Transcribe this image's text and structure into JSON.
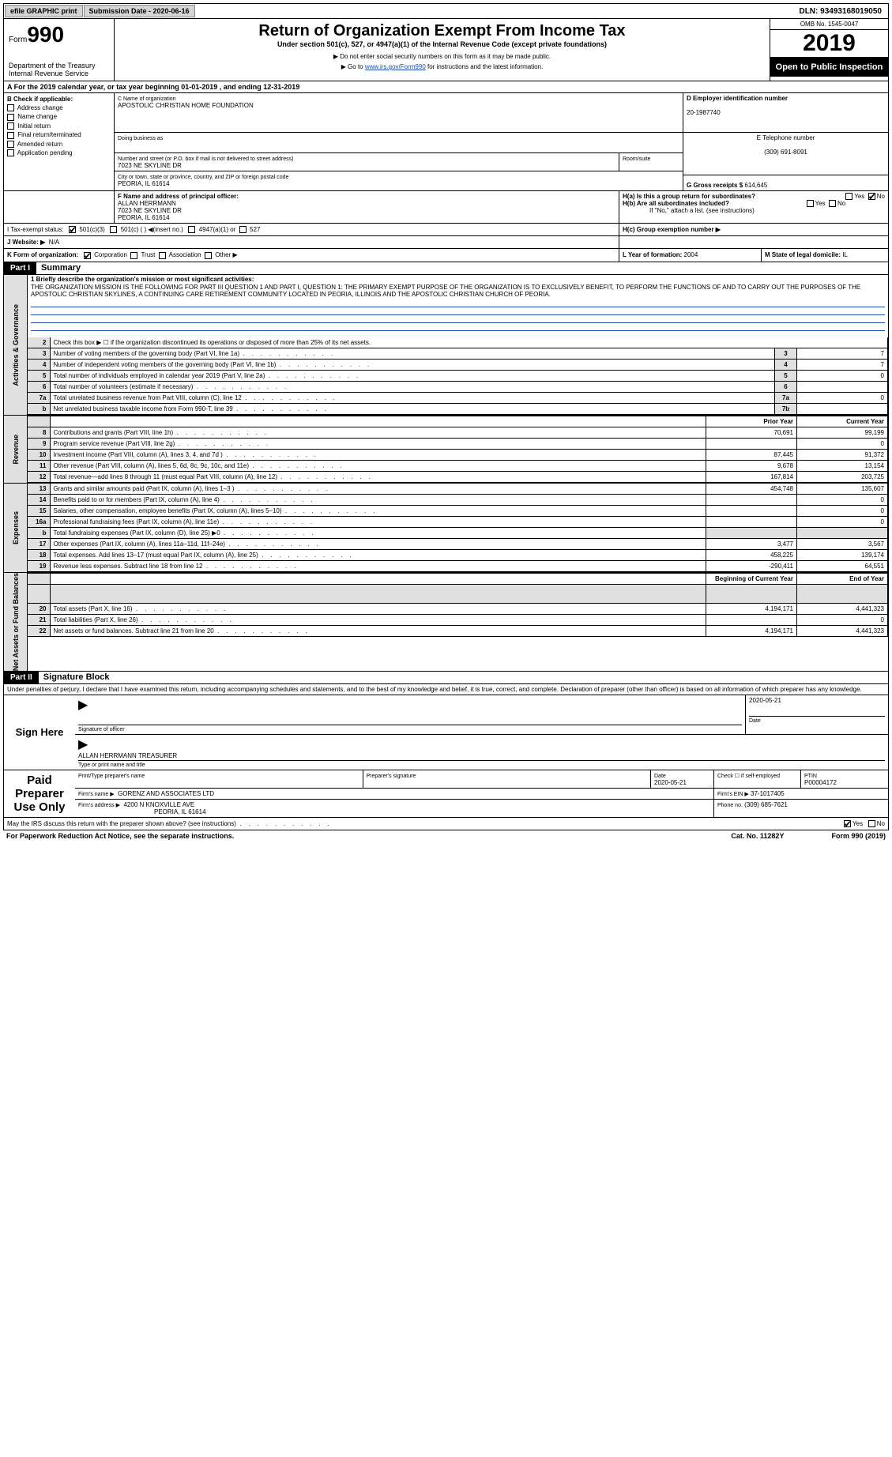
{
  "topbar": {
    "efile": "efile GRAPHIC print",
    "submission": "Submission Date - 2020-06-16",
    "dln": "DLN: 93493168019050"
  },
  "header": {
    "form_prefix": "Form",
    "form_num": "990",
    "dept": "Department of the Treasury\nInternal Revenue Service",
    "title": "Return of Organization Exempt From Income Tax",
    "sub1": "Under section 501(c), 527, or 4947(a)(1) of the Internal Revenue Code (except private foundations)",
    "sub2": "▶ Do not enter social security numbers on this form as it may be made public.",
    "sub3_pre": "▶ Go to ",
    "sub3_link": "www.irs.gov/Form990",
    "sub3_post": " for instructions and the latest information.",
    "omb": "OMB No. 1545-0047",
    "year": "2019",
    "inspection": "Open to Public Inspection"
  },
  "a_line": "A For the 2019 calendar year, or tax year beginning 01-01-2019    , and ending 12-31-2019",
  "B": {
    "head": "B Check if applicable:",
    "items": [
      "Address change",
      "Name change",
      "Initial return",
      "Final return/terminated",
      "Amended return",
      "Application pending"
    ]
  },
  "C": {
    "name_label": "C Name of organization",
    "name": "APOSTOLIC CHRISTIAN HOME FOUNDATION",
    "dba_label": "Doing business as",
    "addr_label": "Number and street (or P.O. box if mail is not delivered to street address)",
    "room_label": "Room/suite",
    "addr": "7023 NE SKYLINE DR",
    "city_label": "City or town, state or province, country, and ZIP or foreign postal code",
    "city": "PEORIA, IL  61614"
  },
  "D": {
    "label": "D Employer identification number",
    "val": "20-1987740"
  },
  "E": {
    "label": "E Telephone number",
    "val": "(309) 691-8091"
  },
  "G": {
    "label": "G Gross receipts $",
    "val": "614,645"
  },
  "F": {
    "label": "F  Name and address of principal officer:",
    "name": "ALLAN HERRMANN",
    "addr1": "7023 NE SKYLINE DR",
    "addr2": "PEORIA, IL  61614"
  },
  "H": {
    "a": "H(a)  Is this a group return for subordinates?",
    "b": "H(b)  Are all subordinates included?",
    "b_note": "If \"No,\" attach a list. (see instructions)",
    "c": "H(c)  Group exemption number ▶",
    "yes": "Yes",
    "no": "No"
  },
  "I": {
    "label": "I   Tax-exempt status:",
    "o1": "501(c)(3)",
    "o2": "501(c) (   ) ◀(insert no.)",
    "o3": "4947(a)(1) or",
    "o4": "527"
  },
  "J": {
    "label": "J   Website: ▶",
    "val": "N/A"
  },
  "K": {
    "label": "K Form of organization:",
    "o1": "Corporation",
    "o2": "Trust",
    "o3": "Association",
    "o4": "Other ▶"
  },
  "L": {
    "label": "L Year of formation:",
    "val": "2004"
  },
  "M": {
    "label": "M State of legal domicile:",
    "val": "IL"
  },
  "part1": {
    "num": "Part I",
    "title": "Summary"
  },
  "mission_intro": "1  Briefly describe the organization's mission or most significant activities:",
  "mission": "THE ORGANIZATION MISSION IS THE FOLLOWING FOR PART III QUESTION 1 AND PART I, QUESTION 1: THE PRIMARY EXEMPT PURPOSE OF THE ORGANIZATION IS TO EXCLUSIVELY BENEFIT, TO PERFORM THE FUNCTIONS OF AND TO CARRY OUT THE PURPOSES OF THE APOSTOLIC CHRISTIAN SKYLINES, A CONTINUING CARE RETIREMENT COMMUNITY LOCATED IN PEORIA, ILLINOIS AND THE APOSTOLIC CHRISTIAN CHURCH OF PEORIA.",
  "sidelabels": {
    "gov": "Activities & Governance",
    "rev": "Revenue",
    "exp": "Expenses",
    "net": "Net Assets or Fund Balances"
  },
  "gov_lines": [
    {
      "n": "2",
      "t": "Check this box ▶ ☐ if the organization discontinued its operations or disposed of more than 25% of its net assets.",
      "rn": "",
      "v": ""
    },
    {
      "n": "3",
      "t": "Number of voting members of the governing body (Part VI, line 1a)",
      "rn": "3",
      "v": "7"
    },
    {
      "n": "4",
      "t": "Number of independent voting members of the governing body (Part VI, line 1b)",
      "rn": "4",
      "v": "7"
    },
    {
      "n": "5",
      "t": "Total number of individuals employed in calendar year 2019 (Part V, line 2a)",
      "rn": "5",
      "v": "0"
    },
    {
      "n": "6",
      "t": "Total number of volunteers (estimate if necessary)",
      "rn": "6",
      "v": ""
    },
    {
      "n": "7a",
      "t": "Total unrelated business revenue from Part VIII, column (C), line 12",
      "rn": "7a",
      "v": "0"
    },
    {
      "n": "b",
      "t": "Net unrelated business taxable income from Form 990-T, line 39",
      "rn": "7b",
      "v": ""
    }
  ],
  "col_head": {
    "prior": "Prior Year",
    "current": "Current Year",
    "boy": "Beginning of Current Year",
    "eoy": "End of Year"
  },
  "rev_lines": [
    {
      "n": "8",
      "t": "Contributions and grants (Part VIII, line 1h)",
      "p": "70,691",
      "c": "99,199"
    },
    {
      "n": "9",
      "t": "Program service revenue (Part VIII, line 2g)",
      "p": "",
      "c": "0"
    },
    {
      "n": "10",
      "t": "Investment income (Part VIII, column (A), lines 3, 4, and 7d )",
      "p": "87,445",
      "c": "91,372"
    },
    {
      "n": "11",
      "t": "Other revenue (Part VIII, column (A), lines 5, 6d, 8c, 9c, 10c, and 11e)",
      "p": "9,678",
      "c": "13,154"
    },
    {
      "n": "12",
      "t": "Total revenue—add lines 8 through 11 (must equal Part VIII, column (A), line 12)",
      "p": "167,814",
      "c": "203,725"
    }
  ],
  "exp_lines": [
    {
      "n": "13",
      "t": "Grants and similar amounts paid (Part IX, column (A), lines 1–3 )",
      "p": "454,748",
      "c": "135,607"
    },
    {
      "n": "14",
      "t": "Benefits paid to or for members (Part IX, column (A), line 4)",
      "p": "",
      "c": "0"
    },
    {
      "n": "15",
      "t": "Salaries, other compensation, employee benefits (Part IX, column (A), lines 5–10)",
      "p": "",
      "c": "0"
    },
    {
      "n": "16a",
      "t": "Professional fundraising fees (Part IX, column (A), line 11e)",
      "p": "",
      "c": "0"
    },
    {
      "n": "b",
      "t": "Total fundraising expenses (Part IX, column (D), line 25) ▶0",
      "p": "grey",
      "c": "grey"
    },
    {
      "n": "17",
      "t": "Other expenses (Part IX, column (A), lines 11a–11d, 11f–24e)",
      "p": "3,477",
      "c": "3,567"
    },
    {
      "n": "18",
      "t": "Total expenses. Add lines 13–17 (must equal Part IX, column (A), line 25)",
      "p": "458,225",
      "c": "139,174"
    },
    {
      "n": "19",
      "t": "Revenue less expenses. Subtract line 18 from line 12",
      "p": "-290,411",
      "c": "64,551"
    }
  ],
  "net_lines": [
    {
      "n": "20",
      "t": "Total assets (Part X, line 16)",
      "p": "4,194,171",
      "c": "4,441,323"
    },
    {
      "n": "21",
      "t": "Total liabilities (Part X, line 26)",
      "p": "",
      "c": "0"
    },
    {
      "n": "22",
      "t": "Net assets or fund balances. Subtract line 21 from line 20",
      "p": "4,194,171",
      "c": "4,441,323"
    }
  ],
  "part2": {
    "num": "Part II",
    "title": "Signature Block"
  },
  "perjury": "Under penalties of perjury, I declare that I have examined this return, including accompanying schedules and statements, and to the best of my knowledge and belief, it is true, correct, and complete. Declaration of preparer (other than officer) is based on all information of which preparer has any knowledge.",
  "sign": {
    "here": "Sign Here",
    "sig_of_officer": "Signature of officer",
    "date": "2020-05-21",
    "date_label": "Date",
    "name": "ALLAN HERRMANN  TREASURER",
    "name_label": "Type or print name and title"
  },
  "paid": {
    "label": "Paid Preparer Use Only",
    "print_label": "Print/Type preparer's name",
    "sig_label": "Preparer's signature",
    "date_label": "Date",
    "date": "2020-05-21",
    "check_label": "Check ☐ if self-employed",
    "ptin_label": "PTIN",
    "ptin": "P00004172",
    "firm_name_label": "Firm's name    ▶",
    "firm_name": "GORENZ AND ASSOCIATES LTD",
    "firm_ein_label": "Firm's EIN ▶",
    "firm_ein": "37-1017405",
    "firm_addr_label": "Firm's address ▶",
    "firm_addr1": "4200 N KNOXVILLE AVE",
    "firm_addr2": "PEORIA, IL  61614",
    "phone_label": "Phone no.",
    "phone": "(309) 685-7621"
  },
  "discuss": {
    "text": "May the IRS discuss this return with the preparer shown above? (see instructions)",
    "yes": "Yes",
    "no": "No"
  },
  "footer": {
    "left": "For Paperwork Reduction Act Notice, see the separate instructions.",
    "mid": "Cat. No. 11282Y",
    "right": "Form 990 (2019)"
  },
  "colors": {
    "link": "#1a4bb3",
    "grey": "#e0e0e0",
    "black": "#000000"
  }
}
